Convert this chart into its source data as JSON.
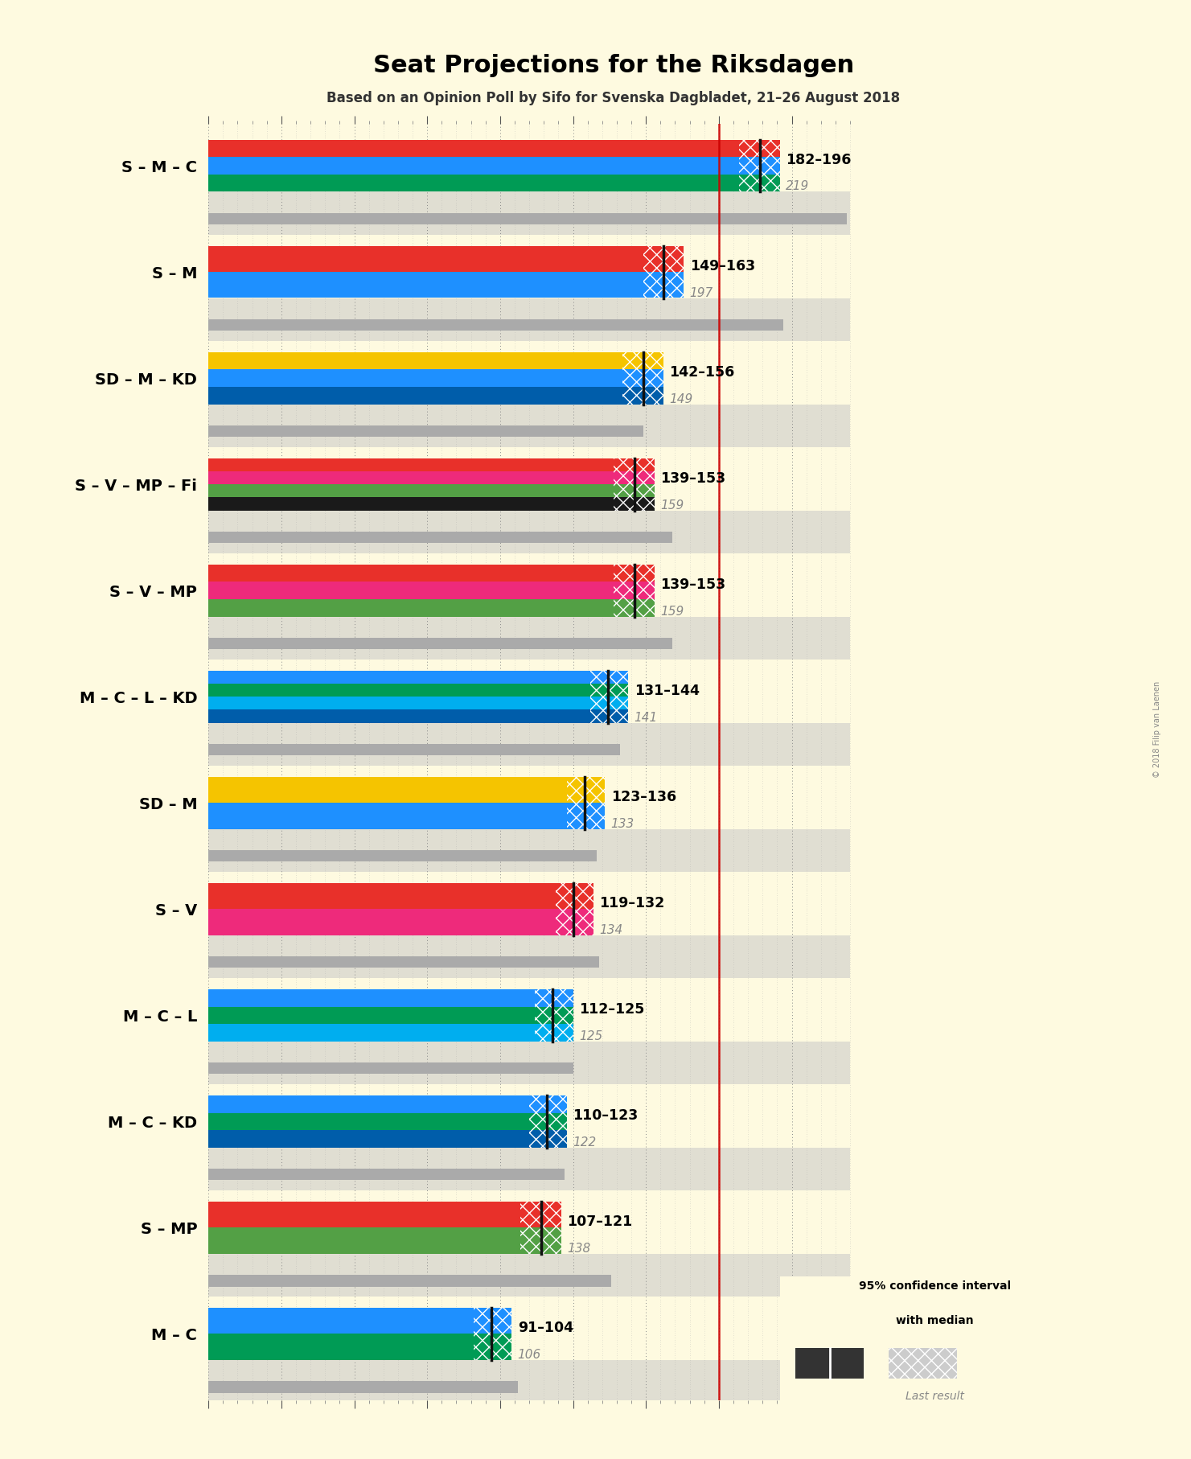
{
  "title": "Seat Projections for the Riksdagen",
  "subtitle": "Based on an Opinion Poll by Sifo for Svenska Dagbladet, 21–26 August 2018",
  "background_color": "#FEFAE0",
  "coalitions": [
    {
      "label": "S – M – C",
      "parties": [
        "S",
        "M",
        "C"
      ],
      "colors": [
        "#E8302A",
        "#1E90FF",
        "#009B55"
      ],
      "ci_low": 182,
      "ci_high": 196,
      "median": 189,
      "last_result": 219
    },
    {
      "label": "S – M",
      "parties": [
        "S",
        "M"
      ],
      "colors": [
        "#E8302A",
        "#1E90FF"
      ],
      "ci_low": 149,
      "ci_high": 163,
      "median": 156,
      "last_result": 197
    },
    {
      "label": "SD – M – KD",
      "parties": [
        "SD",
        "M",
        "KD"
      ],
      "colors": [
        "#F5C400",
        "#1E90FF",
        "#005DAA"
      ],
      "ci_low": 142,
      "ci_high": 156,
      "median": 149,
      "last_result": 149
    },
    {
      "label": "S – V – MP – Fi",
      "parties": [
        "S",
        "V",
        "MP",
        "Fi"
      ],
      "colors": [
        "#E8302A",
        "#EE2A7B",
        "#53A045",
        "#1A1A1A"
      ],
      "ci_low": 139,
      "ci_high": 153,
      "median": 146,
      "last_result": 159
    },
    {
      "label": "S – V – MP",
      "parties": [
        "S",
        "V",
        "MP"
      ],
      "colors": [
        "#E8302A",
        "#EE2A7B",
        "#53A045"
      ],
      "ci_low": 139,
      "ci_high": 153,
      "median": 146,
      "last_result": 159
    },
    {
      "label": "M – C – L – KD",
      "parties": [
        "M",
        "C",
        "L",
        "KD"
      ],
      "colors": [
        "#1E90FF",
        "#009B55",
        "#00AEEF",
        "#005DAA"
      ],
      "ci_low": 131,
      "ci_high": 144,
      "median": 137,
      "last_result": 141
    },
    {
      "label": "SD – M",
      "parties": [
        "SD",
        "M"
      ],
      "colors": [
        "#F5C400",
        "#1E90FF"
      ],
      "ci_low": 123,
      "ci_high": 136,
      "median": 129,
      "last_result": 133
    },
    {
      "label": "S – V",
      "parties": [
        "S",
        "V"
      ],
      "colors": [
        "#E8302A",
        "#EE2A7B"
      ],
      "ci_low": 119,
      "ci_high": 132,
      "median": 125,
      "last_result": 134
    },
    {
      "label": "M – C – L",
      "parties": [
        "M",
        "C",
        "L"
      ],
      "colors": [
        "#1E90FF",
        "#009B55",
        "#00AEEF"
      ],
      "ci_low": 112,
      "ci_high": 125,
      "median": 118,
      "last_result": 125
    },
    {
      "label": "M – C – KD",
      "parties": [
        "M",
        "C",
        "KD"
      ],
      "colors": [
        "#1E90FF",
        "#009B55",
        "#005DAA"
      ],
      "ci_low": 110,
      "ci_high": 123,
      "median": 116,
      "last_result": 122
    },
    {
      "label": "S – MP",
      "parties": [
        "S",
        "MP"
      ],
      "colors": [
        "#E8302A",
        "#53A045"
      ],
      "ci_low": 107,
      "ci_high": 121,
      "median": 114,
      "last_result": 138
    },
    {
      "label": "M – C",
      "parties": [
        "M",
        "C"
      ],
      "colors": [
        "#1E90FF",
        "#009B55"
      ],
      "ci_low": 91,
      "ci_high": 104,
      "median": 97,
      "last_result": 106
    }
  ],
  "x_min": 0,
  "x_max": 220,
  "majority_line": 175,
  "copyright": "© 2018 Filip van Laenen"
}
